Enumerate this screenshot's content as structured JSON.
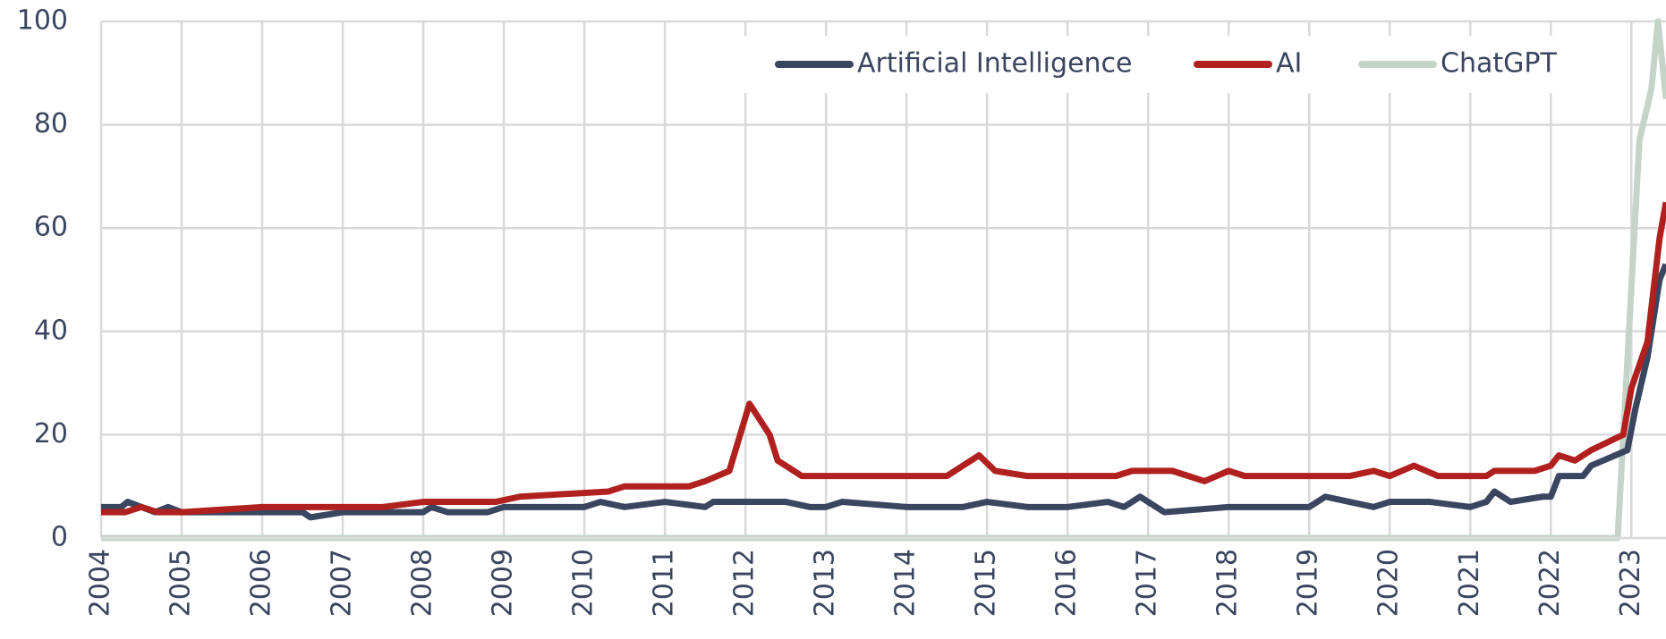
{
  "chart_data": {
    "type": "line",
    "xlim": [
      2004,
      2023.43
    ],
    "xticks": [
      2004,
      2005,
      2006,
      2007,
      2008,
      2009,
      2010,
      2011,
      2012,
      2013,
      2014,
      2015,
      2016,
      2017,
      2018,
      2019,
      2020,
      2021,
      2022,
      2023
    ],
    "ylim": [
      0,
      100
    ],
    "yticks": [
      0,
      20,
      40,
      60,
      80,
      100
    ],
    "grid": true,
    "legend": "top",
    "series": [
      {
        "name": "Artificial Intelligence",
        "color": "#3a4560",
        "x": [
          2004,
          2004.25,
          2004.33,
          2004.5,
          2004.67,
          2004.83,
          2005,
          2006,
          2006.5,
          2006.6,
          2007,
          2008,
          2008.1,
          2008.3,
          2008.8,
          2009,
          2010,
          2010.2,
          2010.5,
          2011,
          2011.5,
          2011.6,
          2012,
          2012.5,
          2012.8,
          2013,
          2013.2,
          2014,
          2014.7,
          2015,
          2015.5,
          2016,
          2016.5,
          2016.7,
          2016.9,
          2017,
          2017.2,
          2018,
          2018.5,
          2019,
          2019.2,
          2019.5,
          2019.8,
          2020,
          2020.5,
          2021,
          2021.2,
          2021.3,
          2021.5,
          2021.9,
          2022,
          2022.1,
          2022.4,
          2022.5,
          2022.8,
          2022.95,
          2023.05,
          2023.2,
          2023.35,
          2023.43
        ],
        "values": [
          6,
          6,
          7,
          6,
          5,
          6,
          5,
          5,
          5,
          4,
          5,
          5,
          6,
          5,
          5,
          6,
          6,
          7,
          6,
          7,
          6,
          7,
          7,
          7,
          6,
          6,
          7,
          6,
          6,
          7,
          6,
          6,
          7,
          6,
          8,
          7,
          5,
          6,
          6,
          6,
          8,
          7,
          6,
          7,
          7,
          6,
          7,
          9,
          7,
          8,
          8,
          12,
          12,
          14,
          16,
          17,
          25,
          35,
          50,
          53
        ]
      },
      {
        "name": "AI",
        "color": "#b0201e",
        "x": [
          2004,
          2004.3,
          2004.5,
          2004.7,
          2005,
          2006,
          2007,
          2007.5,
          2008,
          2008.9,
          2009.2,
          2010.3,
          2010.5,
          2011.3,
          2011.5,
          2011.8,
          2012.05,
          2012.3,
          2012.4,
          2012.7,
          2013,
          2014.5,
          2014.8,
          2014.9,
          2015.1,
          2015.5,
          2016,
          2016.6,
          2016.8,
          2017.3,
          2017.5,
          2017.7,
          2018,
          2018.2,
          2019.5,
          2019.8,
          2020,
          2020.3,
          2020.6,
          2021.2,
          2021.3,
          2021.8,
          2022,
          2022.1,
          2022.3,
          2022.5,
          2022.9,
          2023.0,
          2023.2,
          2023.35,
          2023.43
        ],
        "values": [
          5,
          5,
          6,
          5,
          5,
          6,
          6,
          6,
          7,
          7,
          8,
          9,
          10,
          10,
          11,
          13,
          26,
          20,
          15,
          12,
          12,
          12,
          15,
          16,
          13,
          12,
          12,
          12,
          13,
          13,
          12,
          11,
          13,
          12,
          12,
          13,
          12,
          14,
          12,
          12,
          13,
          13,
          14,
          16,
          15,
          17,
          20,
          29,
          38,
          58,
          65
        ]
      },
      {
        "name": "ChatGPT",
        "color": "#c4d4c8",
        "x": [
          2004,
          2022.83,
          2023.1,
          2023.25,
          2023.33,
          2023.43
        ],
        "values": [
          0,
          0,
          77,
          87,
          100,
          85
        ]
      }
    ]
  }
}
